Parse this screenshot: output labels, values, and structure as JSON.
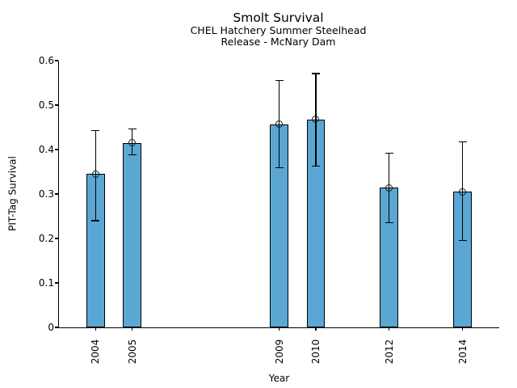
{
  "chart_data": {
    "type": "bar",
    "title": "Smolt Survival",
    "subtitle": [
      "CHEL Hatchery Summer Steelhead",
      "Release - McNary Dam"
    ],
    "xlabel": "Year",
    "ylabel": "PIT-Tag Survival",
    "categories": [
      "2004",
      "2005",
      "2009",
      "2010",
      "2012",
      "2014"
    ],
    "x": [
      2004,
      2005,
      2009,
      2010,
      2012,
      2014
    ],
    "values": [
      0.345,
      0.415,
      0.457,
      0.467,
      0.314,
      0.305
    ],
    "error_low": [
      0.24,
      0.388,
      0.359,
      0.362,
      0.235,
      0.196
    ],
    "error_high": [
      0.443,
      0.446,
      0.555,
      0.571,
      0.392,
      0.418
    ],
    "ylim": [
      0,
      0.6
    ],
    "xlim": [
      2003,
      2015
    ],
    "yticks": [
      0,
      0.1,
      0.2,
      0.3,
      0.4,
      0.5,
      0.6
    ],
    "ytick_labels": [
      "0",
      "0.1",
      "0.2",
      "0.3",
      "0.4",
      "0.5",
      "0.6"
    ],
    "bar_width_years": 0.5,
    "bar_color": "#5aa7d3",
    "edge_color": "#000000",
    "marker": "open-circle",
    "error_caps": true,
    "grid": false,
    "legend": null,
    "x_tick_label_rotation_deg": 90
  }
}
